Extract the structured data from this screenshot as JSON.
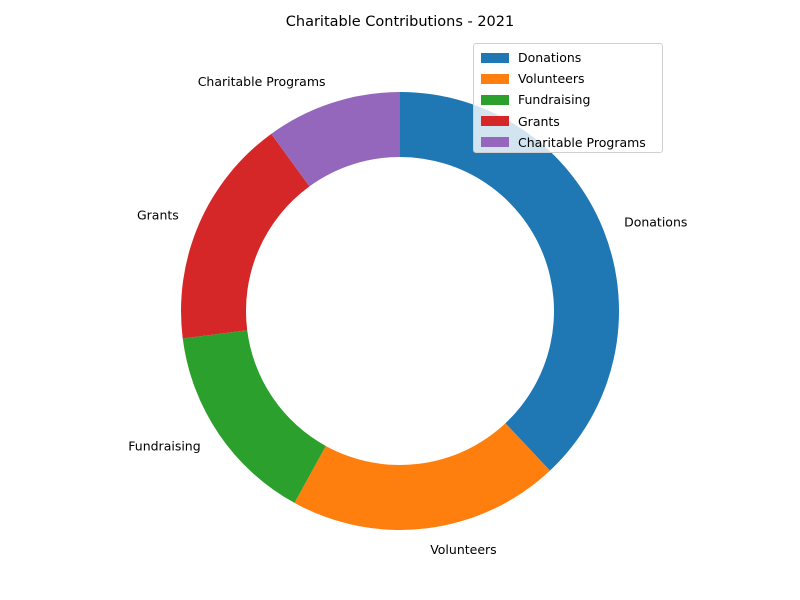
{
  "chart_data": {
    "type": "pie",
    "variant": "donut",
    "title": "Charitable Contributions - 2021",
    "categories": [
      "Donations",
      "Volunteers",
      "Fundraising",
      "Grants",
      "Charitable Programs"
    ],
    "values": [
      38,
      20,
      15,
      17,
      10
    ],
    "colors": [
      "#1f77b4",
      "#ff7f0e",
      "#2ca02c",
      "#d62728",
      "#9467bd"
    ],
    "start_angle_deg": 90,
    "direction": "clockwise",
    "legend": {
      "placement": "top-right",
      "entries": [
        "Donations",
        "Volunteers",
        "Fundraising",
        "Grants",
        "Charitable Programs"
      ]
    }
  }
}
